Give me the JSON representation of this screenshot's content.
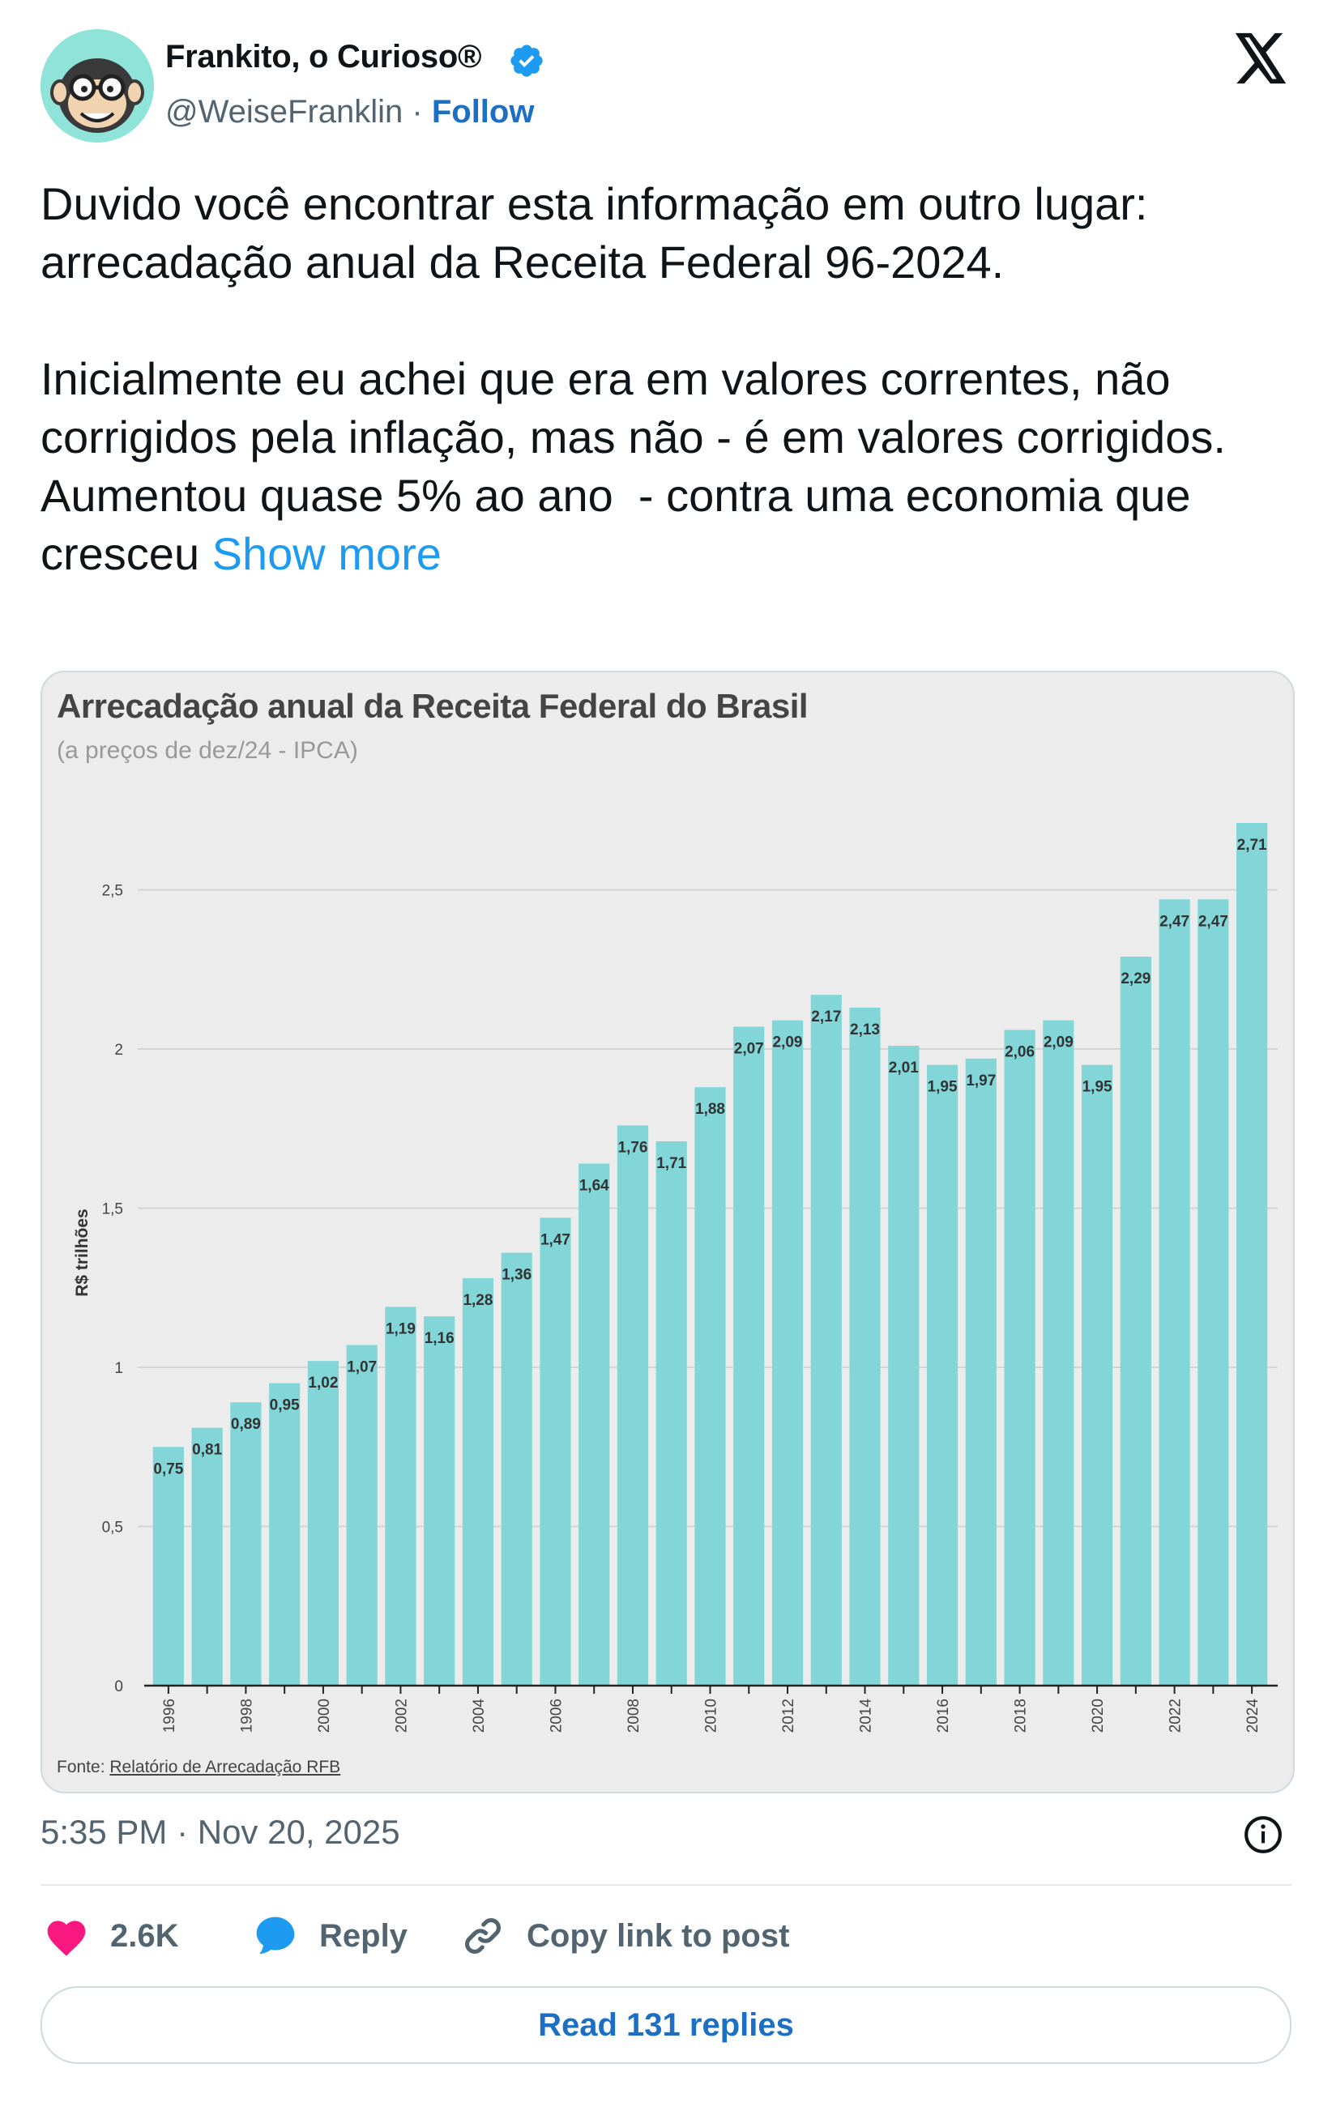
{
  "post": {
    "author_name": "Frankito, o Curioso®",
    "handle": "@WeiseFranklin",
    "separator": " · ",
    "follow_label": "Follow",
    "text": "Duvido você encontrar esta informação em outro lugar:\narrecadação anual da Receita Federal 96-2024.\n\nInicialmente eu achei que era em valores correntes, não corrigidos pela inflação, mas não - é em valores corrigidos.\nAumentou quase 5% ao ano  - contra uma economia que cresceu ",
    "show_more": "Show more",
    "timestamp": "5:35 PM · Nov 20, 2025"
  },
  "actions": {
    "like_count": "2.6K",
    "reply_label": "Reply",
    "copy_label": "Copy link to post",
    "read_replies": "Read 131 replies"
  },
  "icons": {
    "avatar": "cartoon-monkey-avatar",
    "verified": "verified-badge-icon",
    "x": "x-logo-icon",
    "info": "info-icon",
    "like": "heart-icon",
    "reply": "speech-bubble-icon",
    "copy": "link-icon"
  },
  "colors": {
    "bar": "#82d6d8",
    "accent": "#1d9bf0",
    "like": "#f91880",
    "verified": "#1d9bf0"
  },
  "chart_data": {
    "type": "bar",
    "title": "Arrecadação anual da Receita Federal do Brasil",
    "subtitle": "(a preços de dez/24 - IPCA)",
    "ylabel": "R$ trilhões",
    "xlabel": "",
    "ylim": [
      0,
      2.75
    ],
    "yticks": [
      "0",
      "0,5",
      "1",
      "1,5",
      "2",
      "2,5"
    ],
    "yticks_values": [
      0,
      0.5,
      1,
      1.5,
      2,
      2.5
    ],
    "grid": true,
    "categories": [
      "1996",
      "1997",
      "1998",
      "1999",
      "2000",
      "2001",
      "2002",
      "2003",
      "2004",
      "2005",
      "2006",
      "2007",
      "2008",
      "2009",
      "2010",
      "2011",
      "2012",
      "2013",
      "2014",
      "2015",
      "2016",
      "2017",
      "2018",
      "2019",
      "2020",
      "2021",
      "2022",
      "2023",
      "2024"
    ],
    "xtick_labels": [
      "1996",
      "",
      "1998",
      "",
      "2000",
      "",
      "2002",
      "",
      "2004",
      "",
      "2006",
      "",
      "2008",
      "",
      "2010",
      "",
      "2012",
      "",
      "2014",
      "",
      "2016",
      "",
      "2018",
      "",
      "2020",
      "",
      "2022",
      "",
      "2024"
    ],
    "values": [
      0.75,
      0.81,
      0.89,
      0.95,
      1.02,
      1.07,
      1.19,
      1.16,
      1.28,
      1.36,
      1.47,
      1.64,
      1.76,
      1.71,
      1.88,
      2.07,
      2.09,
      2.17,
      2.13,
      2.01,
      1.95,
      1.97,
      2.06,
      2.09,
      1.95,
      2.29,
      2.47,
      2.47,
      2.71
    ],
    "value_labels": [
      "0,75",
      "0,81",
      "0,89",
      "0,95",
      "1,02",
      "1,07",
      "1,19",
      "1,16",
      "1,28",
      "1,36",
      "1,47",
      "1,64",
      "1,76",
      "1,71",
      "1,88",
      "2,07",
      "2,09",
      "2,17",
      "2,13",
      "2,01",
      "1,95",
      "1,97",
      "2,06",
      "2,09",
      "1,95",
      "2,29",
      "2,47",
      "2,47",
      "2,71"
    ],
    "source_prefix": "Fonte: ",
    "source_link": "Relatório de Arrecadação RFB"
  }
}
